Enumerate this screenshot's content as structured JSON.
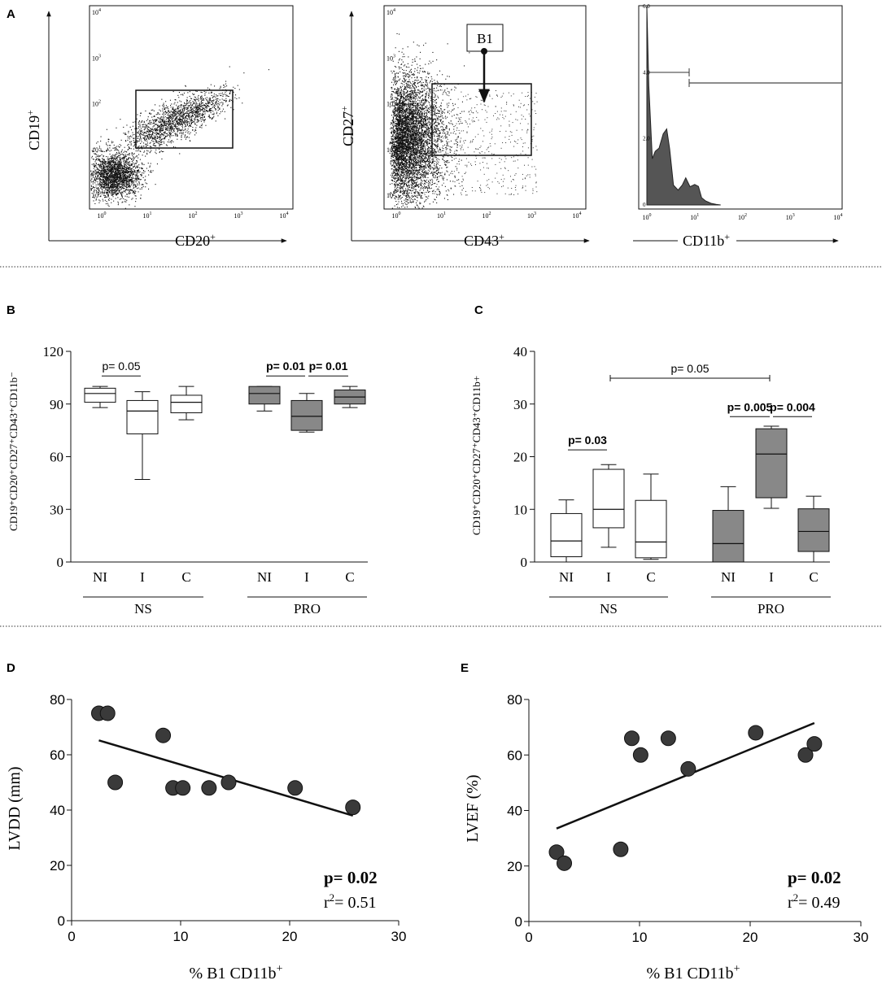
{
  "panels": {
    "A": "A",
    "B": "B",
    "C": "C",
    "D": "D",
    "E": "E"
  },
  "chart_data": [
    {
      "id": "A1",
      "type": "scatter",
      "xlabel": "CD20",
      "xlabel_sup": "+",
      "ylabel": "CD19",
      "ylabel_sup": "+",
      "ticks": [
        "10",
        "10",
        "10",
        "10",
        "10"
      ],
      "tick_exp": [
        "0",
        "1",
        "2",
        "3",
        "4"
      ],
      "scale": "log",
      "range": [
        1,
        10000
      ]
    },
    {
      "id": "A2",
      "type": "scatter",
      "xlabel": "CD43",
      "xlabel_sup": "+",
      "ylabel": "CD27",
      "ylabel_sup": "+",
      "ticks": [
        "10",
        "10",
        "10",
        "10",
        "10"
      ],
      "tick_exp": [
        "0",
        "1",
        "2",
        "3",
        "4"
      ],
      "scale": "log",
      "range": [
        1,
        10000
      ],
      "gate_label": "B1"
    },
    {
      "id": "A3",
      "type": "area",
      "xlabel": "CD11b",
      "xlabel_sup": "+",
      "yticks": [
        "0",
        "2.0",
        "4.0",
        "6.0"
      ],
      "ylim": [
        0,
        6
      ],
      "xticks": [
        "10",
        "10",
        "10",
        "10",
        "10"
      ],
      "tick_exp": [
        "0",
        "1",
        "2",
        "3",
        "4"
      ],
      "x": [
        1.0,
        1.1,
        1.3,
        1.5,
        1.8,
        2.2,
        2.6,
        3.0,
        3.6,
        4.5,
        5.5,
        6.5,
        8.0,
        10,
        12,
        14,
        17,
        22,
        28,
        35
      ],
      "y": [
        6.0,
        3.6,
        1.4,
        1.62,
        1.72,
        2.15,
        2.3,
        1.7,
        0.6,
        0.45,
        0.6,
        0.82,
        0.55,
        0.62,
        0.56,
        0.22,
        0.12,
        0.05,
        0.02,
        0.0
      ]
    },
    {
      "id": "B",
      "type": "box",
      "ylabel": "CD19⁺CD20⁺CD27⁺CD43⁺CD11b⁻",
      "ylim": [
        0,
        120
      ],
      "yticks": [
        "0",
        "30",
        "60",
        "90",
        "120"
      ],
      "categories": [
        "NI",
        "I",
        "C",
        "NI",
        "I",
        "C"
      ],
      "groups": [
        "NS",
        "PRO"
      ],
      "boxes": [
        {
          "min": 88,
          "q1": 91,
          "median": 96,
          "q3": 99,
          "max": 100,
          "fill": "#ffffff"
        },
        {
          "min": 47,
          "q1": 73,
          "median": 86,
          "q3": 92,
          "max": 97,
          "fill": "#ffffff"
        },
        {
          "min": 81,
          "q1": 85,
          "median": 91,
          "q3": 95,
          "max": 100,
          "fill": "#ffffff"
        },
        {
          "min": 86,
          "q1": 90,
          "median": 96,
          "q3": 100,
          "max": 100,
          "fill": "#888888"
        },
        {
          "min": 74,
          "q1": 75,
          "median": 83,
          "q3": 92,
          "max": 96,
          "fill": "#888888"
        },
        {
          "min": 88,
          "q1": 90,
          "median": 94,
          "q3": 98,
          "max": 100,
          "fill": "#888888"
        }
      ],
      "annotations": [
        {
          "text": "p= 0.05",
          "bold": false,
          "from": 0,
          "to": 1,
          "y": 106
        },
        {
          "text": "p= 0.01",
          "bold": true,
          "from": 3,
          "to": 4,
          "y": 106
        },
        {
          "text": "p= 0.01",
          "bold": true,
          "from": 4,
          "to": 5,
          "y": 106
        }
      ]
    },
    {
      "id": "C",
      "type": "box",
      "ylabel": "CD19⁺CD20⁺CD27⁺CD43⁺CD11b+",
      "ylim": [
        0,
        40
      ],
      "yticks": [
        "0",
        "10",
        "20",
        "30",
        "40"
      ],
      "categories": [
        "NI",
        "I",
        "C",
        "NI",
        "I",
        "C"
      ],
      "groups": [
        "NS",
        "PRO"
      ],
      "boxes": [
        {
          "min": 0,
          "q1": 1,
          "median": 4,
          "q3": 9.2,
          "max": 11.8,
          "fill": "#ffffff"
        },
        {
          "min": 2.8,
          "q1": 6.5,
          "median": 10,
          "q3": 17.6,
          "max": 18.5,
          "fill": "#ffffff"
        },
        {
          "min": 0.5,
          "q1": 0.8,
          "median": 3.8,
          "q3": 11.7,
          "max": 16.7,
          "fill": "#ffffff"
        },
        {
          "min": 0,
          "q1": 0,
          "median": 3.5,
          "q3": 9.8,
          "max": 14.3,
          "fill": "#888888"
        },
        {
          "min": 10.2,
          "q1": 12.2,
          "median": 20.5,
          "q3": 25.3,
          "max": 25.8,
          "fill": "#888888"
        },
        {
          "min": 0,
          "q1": 2,
          "median": 5.8,
          "q3": 10.1,
          "max": 12.5,
          "fill": "#888888"
        }
      ],
      "annotations": [
        {
          "text": "p= 0.05",
          "bold": false,
          "from": 1,
          "to": 4,
          "y": 34.9
        },
        {
          "text": "p= 0.03",
          "bold": true,
          "from": 0,
          "to": 1,
          "y": 21.3
        },
        {
          "text": "p= 0.005",
          "bold": true,
          "from": 3,
          "to": 4,
          "y": 27.6
        },
        {
          "text": "p= 0.004",
          "bold": true,
          "from": 4,
          "to": 5,
          "y": 27.6
        }
      ]
    },
    {
      "id": "D",
      "type": "scatter",
      "xlabel": "% B1 CD11b",
      "xlabel_sup": "+",
      "ylabel": "LVDD (mm)",
      "xlim": [
        0,
        30
      ],
      "ylim": [
        0,
        80
      ],
      "xticks": [
        "0",
        "10",
        "20",
        "30"
      ],
      "yticks": [
        "0",
        "20",
        "40",
        "60",
        "80"
      ],
      "points": [
        [
          2.5,
          75
        ],
        [
          3.3,
          75
        ],
        [
          4.0,
          50
        ],
        [
          8.4,
          67
        ],
        [
          9.3,
          48
        ],
        [
          10.2,
          48
        ],
        [
          12.6,
          48
        ],
        [
          14.4,
          50
        ],
        [
          20.5,
          48
        ],
        [
          25.8,
          41
        ]
      ],
      "fit": [
        [
          2.5,
          65.2
        ],
        [
          25.8,
          38
        ]
      ],
      "p_text": "p= 0.02",
      "r2_label": "r",
      "r2_exp": "2",
      "r2_value": "= 0.51"
    },
    {
      "id": "E",
      "type": "scatter",
      "xlabel": "% B1 CD11b",
      "xlabel_sup": "+",
      "ylabel": "LVEF (%)",
      "xlim": [
        0,
        30
      ],
      "ylim": [
        0,
        80
      ],
      "xticks": [
        "0",
        "10",
        "20",
        "30"
      ],
      "yticks": [
        "0",
        "20",
        "40",
        "60",
        "80"
      ],
      "points": [
        [
          2.5,
          25
        ],
        [
          3.2,
          21
        ],
        [
          8.3,
          26
        ],
        [
          9.3,
          66
        ],
        [
          10.1,
          60
        ],
        [
          12.6,
          66
        ],
        [
          14.4,
          55
        ],
        [
          20.5,
          68
        ],
        [
          25.0,
          60
        ],
        [
          25.8,
          64
        ]
      ],
      "fit": [
        [
          2.5,
          33.5
        ],
        [
          25.8,
          71.5
        ]
      ],
      "p_text": "p= 0.02",
      "r2_label": "r",
      "r2_exp": "2",
      "r2_value": "= 0.49"
    }
  ]
}
